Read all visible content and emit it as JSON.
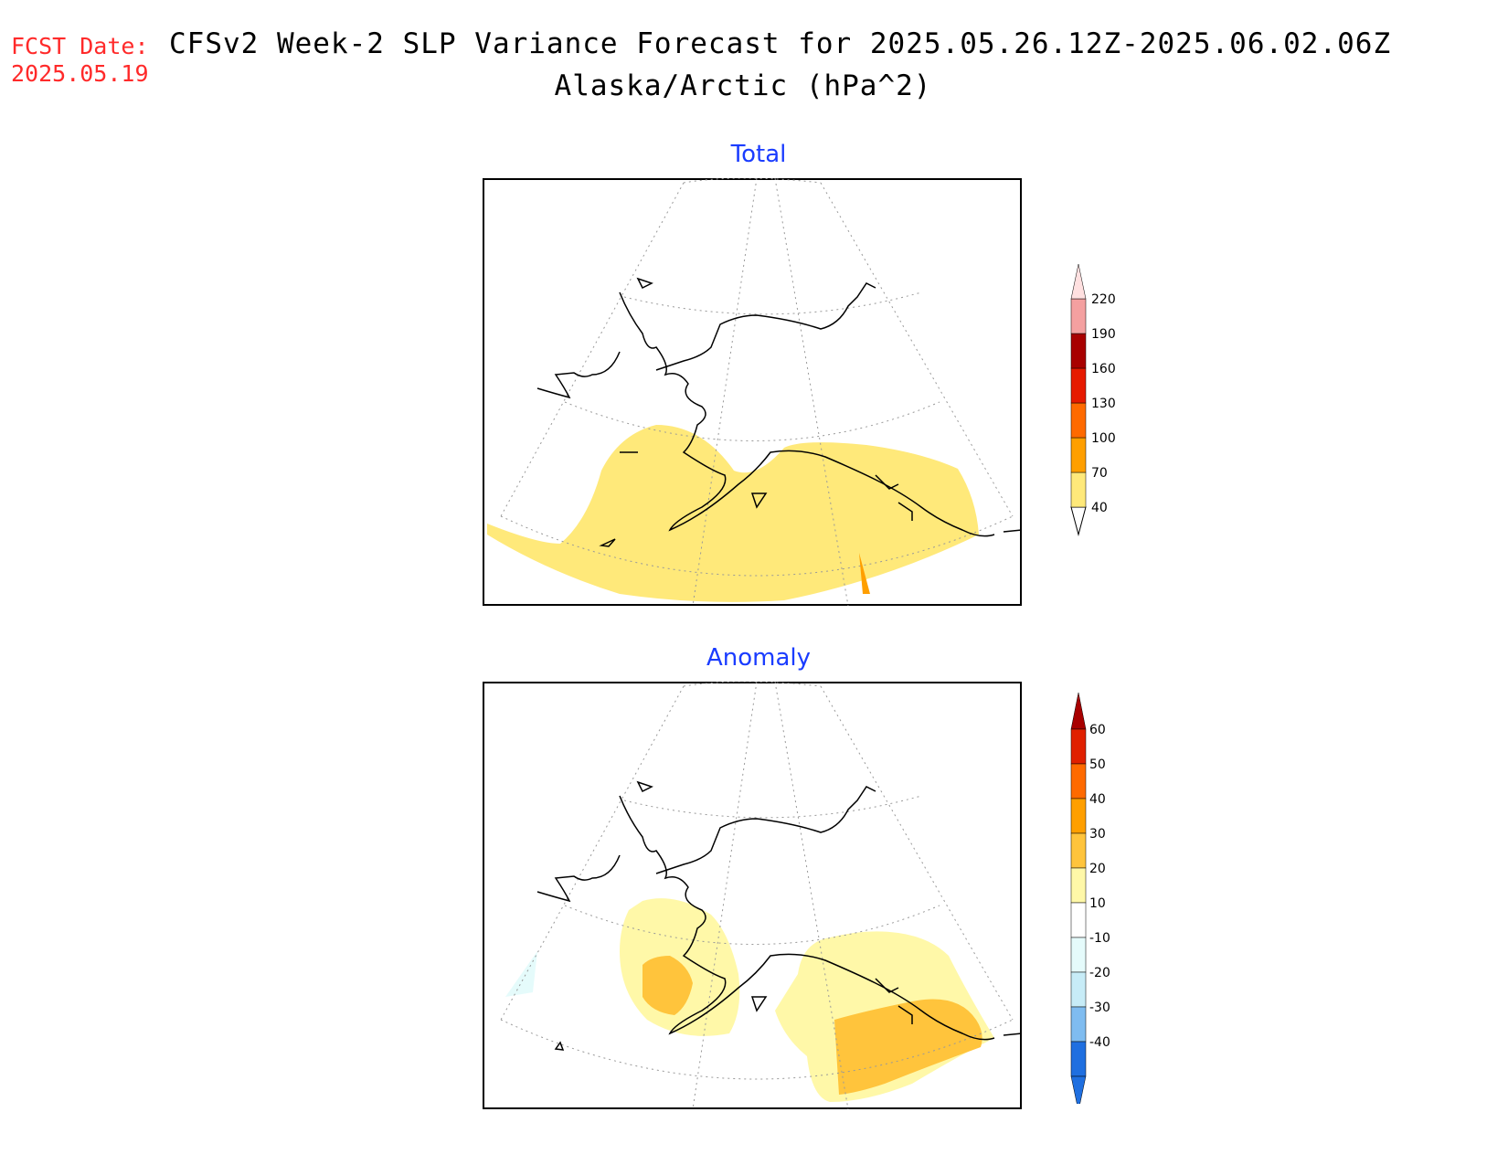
{
  "header": {
    "fcst_label": "FCST Date:",
    "fcst_date": "2025.05.19",
    "title": "CFSv2 Week-2 SLP Variance Forecast for 2025.05.26.12Z-2025.06.02.06Z",
    "subtitle": "Alaska/Arctic (hPa^2)"
  },
  "panels": {
    "total": {
      "title": "Total",
      "colorbar": {
        "labels": [
          "40",
          "70",
          "100",
          "130",
          "160",
          "190",
          "220"
        ],
        "colors": [
          "#ffe97a",
          "#ff9f00",
          "#ff6a00",
          "#e61a00",
          "#a80000",
          "#f4a0a0",
          "#ffe0e0"
        ]
      }
    },
    "anomaly": {
      "title": "Anomaly",
      "colorbar": {
        "labels": [
          "-40",
          "-30",
          "-20",
          "-10",
          "10",
          "20",
          "30",
          "40",
          "50",
          "60"
        ],
        "colors": [
          "#1f6fe0",
          "#1f6fe0",
          "#7fbcf0",
          "#c7ecf7",
          "#e5fbfb",
          "#ffffff",
          "#fff8a8",
          "#ffc43c",
          "#ff9f00",
          "#ff6a00",
          "#e02000",
          "#a80000"
        ]
      }
    },
    "legend_colors": {
      "yellow_light": "#fff8a8",
      "yellow_total": "#ffe97a",
      "orange": "#ffc43c",
      "cyan": "#e5fbfb"
    }
  }
}
